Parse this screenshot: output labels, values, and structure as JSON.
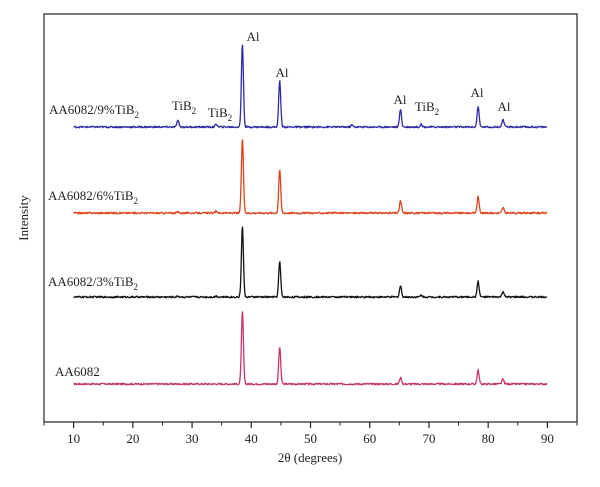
{
  "chart_data": {
    "type": "line",
    "title": "",
    "xlabel": "2θ (degrees)",
    "ylabel": "Intensity",
    "xlim": [
      5,
      95
    ],
    "x_ticks": [
      10,
      20,
      30,
      40,
      50,
      60,
      70,
      80,
      90
    ],
    "y_ticks_shown": false,
    "grid": false,
    "legend": "inline labels at left of each trace",
    "peaks_2theta": [
      27.6,
      34.1,
      38.5,
      44.8,
      57.0,
      65.2,
      68.7,
      78.3,
      82.5
    ],
    "series": [
      {
        "name": "AA6082",
        "label_base": "AA6082",
        "label_sub": "",
        "color": "#c8336e",
        "peak_heights": [
          0,
          0,
          78,
          40,
          0,
          7,
          0,
          15,
          5
        ]
      },
      {
        "name": "AA6082/3%TiB2",
        "label_base": "AA6082/3%TiB",
        "label_sub": "2",
        "color": "#111111",
        "peak_heights": [
          1,
          1,
          76,
          38,
          0,
          12,
          2,
          17,
          6
        ]
      },
      {
        "name": "AA6082/6%TiB2",
        "label_base": "AA6082/6%TiB",
        "label_sub": "2",
        "color": "#d9441b",
        "peak_heights": [
          1,
          2,
          80,
          47,
          0,
          13,
          0,
          18,
          6
        ]
      },
      {
        "name": "AA6082/9%TiB2",
        "label_base": "AA6082/9%TiB",
        "label_sub": "2",
        "color": "#2f2aa3",
        "peak_heights": [
          7,
          3,
          90,
          50,
          2,
          19,
          3,
          22,
          8
        ]
      }
    ],
    "annotations": [
      {
        "base": "Al",
        "sub": "",
        "x": 38.5
      },
      {
        "base": "Al",
        "sub": "",
        "x": 44.8
      },
      {
        "base": "Al",
        "sub": "",
        "x": 65.2
      },
      {
        "base": "Al",
        "sub": "",
        "x": 78.3
      },
      {
        "base": "Al",
        "sub": "",
        "x": 82.5
      },
      {
        "base": "TiB",
        "sub": "2",
        "x": 27.6
      },
      {
        "base": "TiB",
        "sub": "2",
        "x": 34.1
      },
      {
        "base": "TiB",
        "sub": "2",
        "x": 57.0
      },
      {
        "base": "TiB",
        "sub": "2",
        "x": 68.7
      }
    ]
  }
}
